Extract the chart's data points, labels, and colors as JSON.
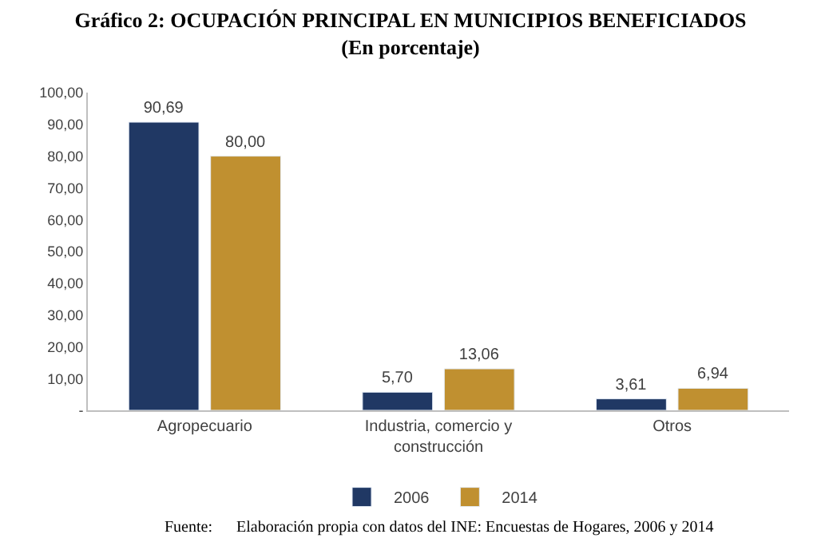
{
  "chart_data": {
    "type": "bar",
    "title": "Gráfico 2: OCUPACIÓN PRINCIPAL EN MUNICIPIOS BENEFICIADOS\n(En porcentaje)",
    "categories": [
      "Agropecuario",
      "Industria, comercio y construcción",
      "Otros"
    ],
    "series": [
      {
        "name": "2006",
        "color": "#203864",
        "values": [
          90.69,
          5.7,
          3.61
        ],
        "value_labels": [
          "90,69",
          "5,70",
          "3,61"
        ]
      },
      {
        "name": "2014",
        "color": "#c09030",
        "values": [
          80.0,
          13.06,
          6.94
        ],
        "value_labels": [
          "80,00",
          "13,06",
          "6,94"
        ]
      }
    ],
    "ylim": [
      0,
      100
    ],
    "yticks": [
      {
        "value": 0,
        "label": "-"
      },
      {
        "value": 10,
        "label": "10,00"
      },
      {
        "value": 20,
        "label": "20,00"
      },
      {
        "value": 30,
        "label": "30,00"
      },
      {
        "value": 40,
        "label": "40,00"
      },
      {
        "value": 50,
        "label": "50,00"
      },
      {
        "value": 60,
        "label": "60,00"
      },
      {
        "value": 70,
        "label": "70,00"
      },
      {
        "value": 80,
        "label": "80,00"
      },
      {
        "value": 90,
        "label": "90,00"
      },
      {
        "value": 100,
        "label": "100,00"
      }
    ],
    "grid": false,
    "legend": "bottom",
    "annotations": [
      "Fuente:      Elaboración propia con datos del INE: Encuestas de Hogares, 2006 y 2014"
    ]
  }
}
